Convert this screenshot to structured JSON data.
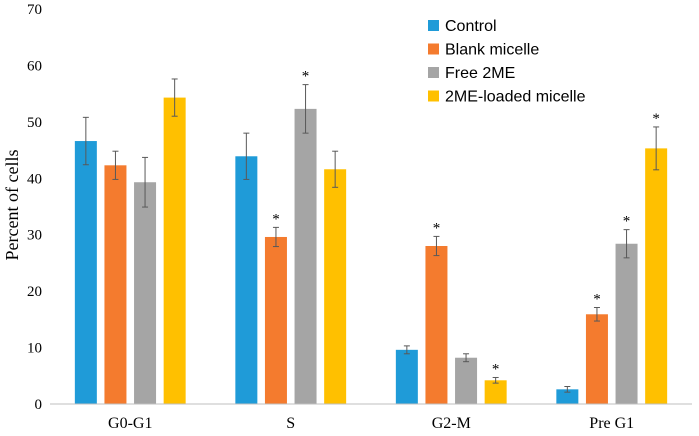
{
  "chart_data": {
    "type": "bar",
    "title": "",
    "xlabel": "",
    "ylabel": "Percent of cells",
    "ylim": [
      0,
      70
    ],
    "yticks": [
      0,
      10,
      20,
      30,
      40,
      50,
      60,
      70
    ],
    "grid": false,
    "legend_position": "top-right",
    "categories": [
      "G0-G1",
      "S",
      "G2-M",
      "Pre G1"
    ],
    "series": [
      {
        "name": "Control",
        "color": "#1F9BD8",
        "values": [
          46.6,
          43.9,
          9.6,
          2.6
        ],
        "errors": [
          4.2,
          4.1,
          0.7,
          0.5
        ],
        "significant": [
          false,
          false,
          false,
          false
        ]
      },
      {
        "name": "Blank micelle",
        "color": "#F47B2E",
        "values": [
          42.3,
          29.6,
          28.0,
          15.9
        ],
        "errors": [
          2.5,
          1.7,
          1.7,
          1.2
        ],
        "significant": [
          false,
          true,
          true,
          true
        ]
      },
      {
        "name": "Free 2ME",
        "color": "#A5A5A5",
        "values": [
          39.3,
          52.3,
          8.2,
          28.4
        ],
        "errors": [
          4.4,
          4.3,
          0.7,
          2.5
        ],
        "significant": [
          false,
          true,
          false,
          true
        ]
      },
      {
        "name": "2ME-loaded micelle",
        "color": "#FFC000",
        "values": [
          54.3,
          41.6,
          4.2,
          45.3
        ],
        "errors": [
          3.3,
          3.2,
          0.5,
          3.8
        ],
        "significant": [
          false,
          false,
          true,
          true
        ]
      }
    ],
    "significance_marker": "*"
  }
}
